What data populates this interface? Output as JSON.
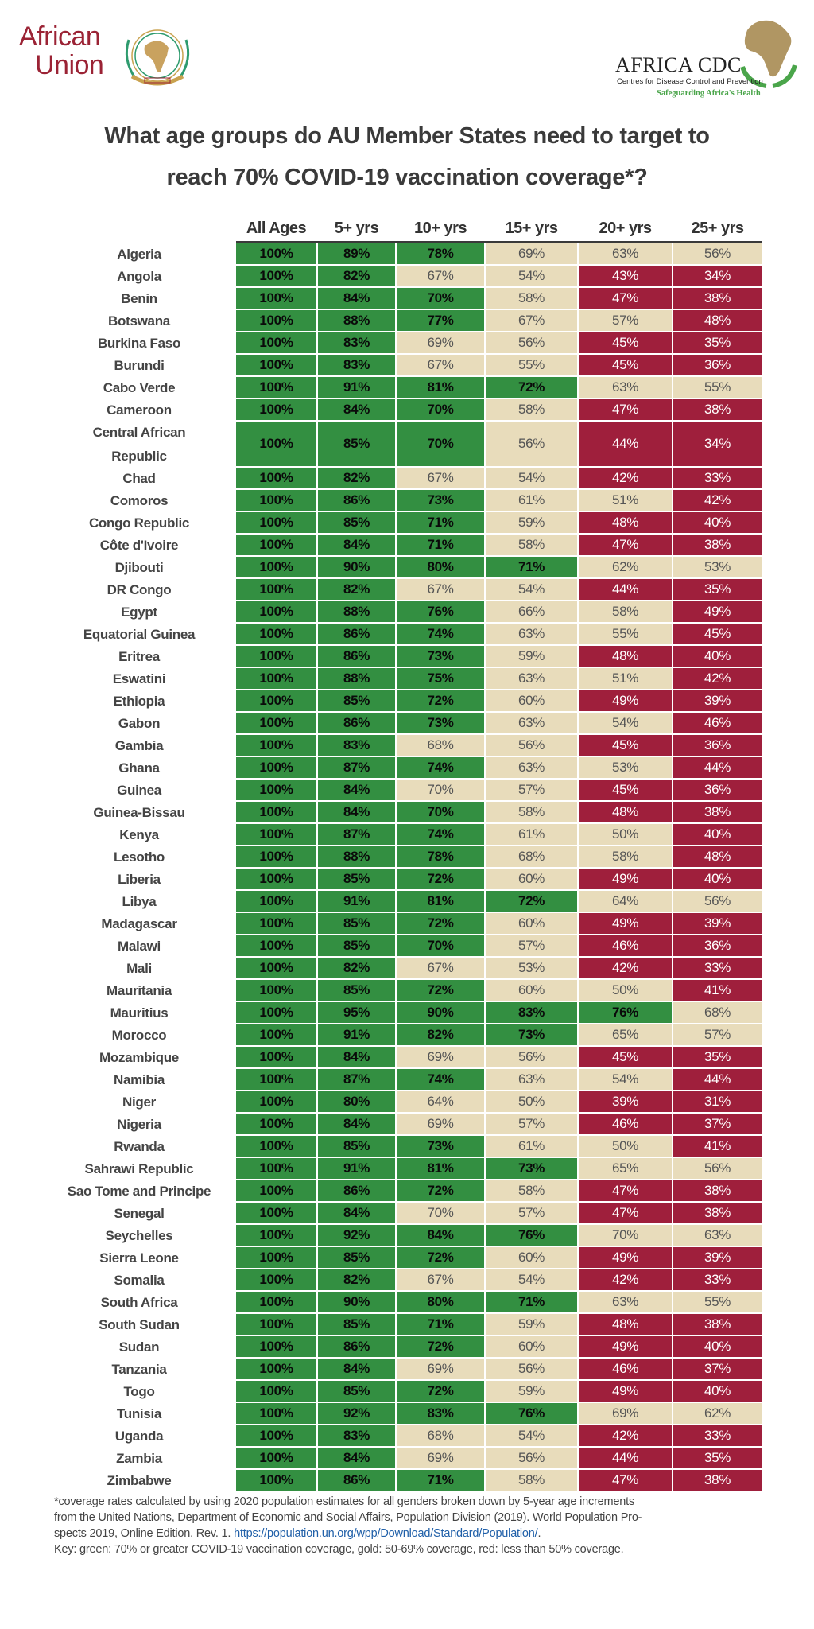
{
  "logos": {
    "african_union": {
      "line1": "African",
      "line2": "Union"
    },
    "africa_cdc": {
      "name": "AFRICA CDC",
      "subtitle": "Centres for Disease Control and Prevention",
      "tagline": "Safeguarding Africa's Health"
    }
  },
  "title": {
    "line1": "What age groups do AU Member States need to target to",
    "line2": "reach 70% COVID-19 vaccination coverage*?"
  },
  "colors": {
    "green": "#338f41",
    "gold": "#e8dcbb",
    "red": "#9f1f3c"
  },
  "chart_data": {
    "type": "table",
    "title": "What age groups do AU Member States need to target to reach 70% COVID-19 vaccination coverage*?",
    "columns": [
      "All Ages",
      "5+ yrs",
      "10+ yrs",
      "15+ yrs",
      "20+ yrs",
      "25+ yrs"
    ],
    "legend": {
      "green": "70% or greater",
      "gold": "50-69%",
      "red": "less than 50%"
    },
    "rows": [
      {
        "country": "Algeria",
        "values": [
          100,
          89,
          78,
          69,
          63,
          56
        ],
        "colors": [
          "green",
          "green",
          "green",
          "gold",
          "gold",
          "gold"
        ]
      },
      {
        "country": "Angola",
        "values": [
          100,
          82,
          67,
          54,
          43,
          34
        ],
        "colors": [
          "green",
          "green",
          "gold",
          "gold",
          "red",
          "red"
        ]
      },
      {
        "country": "Benin",
        "values": [
          100,
          84,
          70,
          58,
          47,
          38
        ],
        "colors": [
          "green",
          "green",
          "green",
          "gold",
          "red",
          "red"
        ]
      },
      {
        "country": "Botswana",
        "values": [
          100,
          88,
          77,
          67,
          57,
          48
        ],
        "colors": [
          "green",
          "green",
          "green",
          "gold",
          "gold",
          "red"
        ]
      },
      {
        "country": "Burkina Faso",
        "values": [
          100,
          83,
          69,
          56,
          45,
          35
        ],
        "colors": [
          "green",
          "green",
          "gold",
          "gold",
          "red",
          "red"
        ]
      },
      {
        "country": "Burundi",
        "values": [
          100,
          83,
          67,
          55,
          45,
          36
        ],
        "colors": [
          "green",
          "green",
          "gold",
          "gold",
          "red",
          "red"
        ]
      },
      {
        "country": "Cabo Verde",
        "values": [
          100,
          91,
          81,
          72,
          63,
          55
        ],
        "colors": [
          "green",
          "green",
          "green",
          "green",
          "gold",
          "gold"
        ]
      },
      {
        "country": "Cameroon",
        "values": [
          100,
          84,
          70,
          58,
          47,
          38
        ],
        "colors": [
          "green",
          "green",
          "green",
          "gold",
          "red",
          "red"
        ]
      },
      {
        "country": "Central African Republic",
        "values": [
          100,
          85,
          70,
          56,
          44,
          34
        ],
        "colors": [
          "green",
          "green",
          "green",
          "gold",
          "red",
          "red"
        ],
        "tall": true
      },
      {
        "country": "Chad",
        "values": [
          100,
          82,
          67,
          54,
          42,
          33
        ],
        "colors": [
          "green",
          "green",
          "gold",
          "gold",
          "red",
          "red"
        ]
      },
      {
        "country": "Comoros",
        "values": [
          100,
          86,
          73,
          61,
          51,
          42
        ],
        "colors": [
          "green",
          "green",
          "green",
          "gold",
          "gold",
          "red"
        ]
      },
      {
        "country": "Congo Republic",
        "values": [
          100,
          85,
          71,
          59,
          48,
          40
        ],
        "colors": [
          "green",
          "green",
          "green",
          "gold",
          "red",
          "red"
        ]
      },
      {
        "country": "Côte d'Ivoire",
        "values": [
          100,
          84,
          71,
          58,
          47,
          38
        ],
        "colors": [
          "green",
          "green",
          "green",
          "gold",
          "red",
          "red"
        ]
      },
      {
        "country": "Djibouti",
        "values": [
          100,
          90,
          80,
          71,
          62,
          53
        ],
        "colors": [
          "green",
          "green",
          "green",
          "green",
          "gold",
          "gold"
        ]
      },
      {
        "country": "DR Congo",
        "values": [
          100,
          82,
          67,
          54,
          44,
          35
        ],
        "colors": [
          "green",
          "green",
          "gold",
          "gold",
          "red",
          "red"
        ]
      },
      {
        "country": "Egypt",
        "values": [
          100,
          88,
          76,
          66,
          58,
          49
        ],
        "colors": [
          "green",
          "green",
          "green",
          "gold",
          "gold",
          "red"
        ]
      },
      {
        "country": "Equatorial Guinea",
        "values": [
          100,
          86,
          74,
          63,
          55,
          45
        ],
        "colors": [
          "green",
          "green",
          "green",
          "gold",
          "gold",
          "red"
        ]
      },
      {
        "country": "Eritrea",
        "values": [
          100,
          86,
          73,
          59,
          48,
          40
        ],
        "colors": [
          "green",
          "green",
          "green",
          "gold",
          "red",
          "red"
        ]
      },
      {
        "country": "Eswatini",
        "values": [
          100,
          88,
          75,
          63,
          51,
          42
        ],
        "colors": [
          "green",
          "green",
          "green",
          "gold",
          "gold",
          "red"
        ]
      },
      {
        "country": "Ethiopia",
        "values": [
          100,
          85,
          72,
          60,
          49,
          39
        ],
        "colors": [
          "green",
          "green",
          "green",
          "gold",
          "red",
          "red"
        ]
      },
      {
        "country": "Gabon",
        "values": [
          100,
          86,
          73,
          63,
          54,
          46
        ],
        "colors": [
          "green",
          "green",
          "green",
          "gold",
          "gold",
          "red"
        ]
      },
      {
        "country": "Gambia",
        "values": [
          100,
          83,
          68,
          56,
          45,
          36
        ],
        "colors": [
          "green",
          "green",
          "gold",
          "gold",
          "red",
          "red"
        ]
      },
      {
        "country": "Ghana",
        "values": [
          100,
          87,
          74,
          63,
          53,
          44
        ],
        "colors": [
          "green",
          "green",
          "green",
          "gold",
          "gold",
          "red"
        ]
      },
      {
        "country": "Guinea",
        "values": [
          100,
          84,
          70,
          57,
          45,
          36
        ],
        "colors": [
          "green",
          "green",
          "gold",
          "gold",
          "red",
          "red"
        ]
      },
      {
        "country": "Guinea-Bissau",
        "values": [
          100,
          84,
          70,
          58,
          48,
          38
        ],
        "colors": [
          "green",
          "green",
          "green",
          "gold",
          "red",
          "red"
        ]
      },
      {
        "country": "Kenya",
        "values": [
          100,
          87,
          74,
          61,
          50,
          40
        ],
        "colors": [
          "green",
          "green",
          "green",
          "gold",
          "gold",
          "red"
        ]
      },
      {
        "country": "Lesotho",
        "values": [
          100,
          88,
          78,
          68,
          58,
          48
        ],
        "colors": [
          "green",
          "green",
          "green",
          "gold",
          "gold",
          "red"
        ]
      },
      {
        "country": "Liberia",
        "values": [
          100,
          85,
          72,
          60,
          49,
          40
        ],
        "colors": [
          "green",
          "green",
          "green",
          "gold",
          "red",
          "red"
        ]
      },
      {
        "country": "Libya",
        "values": [
          100,
          91,
          81,
          72,
          64,
          56
        ],
        "colors": [
          "green",
          "green",
          "green",
          "green",
          "gold",
          "gold"
        ]
      },
      {
        "country": "Madagascar",
        "values": [
          100,
          85,
          72,
          60,
          49,
          39
        ],
        "colors": [
          "green",
          "green",
          "green",
          "gold",
          "red",
          "red"
        ]
      },
      {
        "country": "Malawi",
        "values": [
          100,
          85,
          70,
          57,
          46,
          36
        ],
        "colors": [
          "green",
          "green",
          "green",
          "gold",
          "red",
          "red"
        ]
      },
      {
        "country": "Mali",
        "values": [
          100,
          82,
          67,
          53,
          42,
          33
        ],
        "colors": [
          "green",
          "green",
          "gold",
          "gold",
          "red",
          "red"
        ]
      },
      {
        "country": "Mauritania",
        "values": [
          100,
          85,
          72,
          60,
          50,
          41
        ],
        "colors": [
          "green",
          "green",
          "green",
          "gold",
          "gold",
          "red"
        ]
      },
      {
        "country": "Mauritius",
        "values": [
          100,
          95,
          90,
          83,
          76,
          68
        ],
        "colors": [
          "green",
          "green",
          "green",
          "green",
          "green",
          "gold"
        ]
      },
      {
        "country": "Morocco",
        "values": [
          100,
          91,
          82,
          73,
          65,
          57
        ],
        "colors": [
          "green",
          "green",
          "green",
          "green",
          "gold",
          "gold"
        ]
      },
      {
        "country": "Mozambique",
        "values": [
          100,
          84,
          69,
          56,
          45,
          35
        ],
        "colors": [
          "green",
          "green",
          "gold",
          "gold",
          "red",
          "red"
        ]
      },
      {
        "country": "Namibia",
        "values": [
          100,
          87,
          74,
          63,
          54,
          44
        ],
        "colors": [
          "green",
          "green",
          "green",
          "gold",
          "gold",
          "red"
        ]
      },
      {
        "country": "Niger",
        "values": [
          100,
          80,
          64,
          50,
          39,
          31
        ],
        "colors": [
          "green",
          "green",
          "gold",
          "gold",
          "red",
          "red"
        ]
      },
      {
        "country": "Nigeria",
        "values": [
          100,
          84,
          69,
          57,
          46,
          37
        ],
        "colors": [
          "green",
          "green",
          "gold",
          "gold",
          "red",
          "red"
        ]
      },
      {
        "country": "Rwanda",
        "values": [
          100,
          85,
          73,
          61,
          50,
          41
        ],
        "colors": [
          "green",
          "green",
          "green",
          "gold",
          "gold",
          "red"
        ]
      },
      {
        "country": "Sahrawi Republic",
        "values": [
          100,
          91,
          81,
          73,
          65,
          56
        ],
        "colors": [
          "green",
          "green",
          "green",
          "green",
          "gold",
          "gold"
        ]
      },
      {
        "country": "Sao Tome and Principe",
        "values": [
          100,
          86,
          72,
          58,
          47,
          38
        ],
        "colors": [
          "green",
          "green",
          "green",
          "gold",
          "red",
          "red"
        ]
      },
      {
        "country": "Senegal",
        "values": [
          100,
          84,
          70,
          57,
          47,
          38
        ],
        "colors": [
          "green",
          "green",
          "gold",
          "gold",
          "red",
          "red"
        ]
      },
      {
        "country": "Seychelles",
        "values": [
          100,
          92,
          84,
          76,
          70,
          63
        ],
        "colors": [
          "green",
          "green",
          "green",
          "green",
          "gold",
          "gold"
        ]
      },
      {
        "country": "Sierra Leone",
        "values": [
          100,
          85,
          72,
          60,
          49,
          39
        ],
        "colors": [
          "green",
          "green",
          "green",
          "gold",
          "red",
          "red"
        ]
      },
      {
        "country": "Somalia",
        "values": [
          100,
          82,
          67,
          54,
          42,
          33
        ],
        "colors": [
          "green",
          "green",
          "gold",
          "gold",
          "red",
          "red"
        ]
      },
      {
        "country": "South Africa",
        "values": [
          100,
          90,
          80,
          71,
          63,
          55
        ],
        "colors": [
          "green",
          "green",
          "green",
          "green",
          "gold",
          "gold"
        ]
      },
      {
        "country": "South Sudan",
        "values": [
          100,
          85,
          71,
          59,
          48,
          38
        ],
        "colors": [
          "green",
          "green",
          "green",
          "gold",
          "red",
          "red"
        ]
      },
      {
        "country": "Sudan",
        "values": [
          100,
          86,
          72,
          60,
          49,
          40
        ],
        "colors": [
          "green",
          "green",
          "green",
          "gold",
          "red",
          "red"
        ]
      },
      {
        "country": "Tanzania",
        "values": [
          100,
          84,
          69,
          56,
          46,
          37
        ],
        "colors": [
          "green",
          "green",
          "gold",
          "gold",
          "red",
          "red"
        ]
      },
      {
        "country": "Togo",
        "values": [
          100,
          85,
          72,
          59,
          49,
          40
        ],
        "colors": [
          "green",
          "green",
          "green",
          "gold",
          "red",
          "red"
        ]
      },
      {
        "country": "Tunisia",
        "values": [
          100,
          92,
          83,
          76,
          69,
          62
        ],
        "colors": [
          "green",
          "green",
          "green",
          "green",
          "gold",
          "gold"
        ]
      },
      {
        "country": "Uganda",
        "values": [
          100,
          83,
          68,
          54,
          42,
          33
        ],
        "colors": [
          "green",
          "green",
          "gold",
          "gold",
          "red",
          "red"
        ]
      },
      {
        "country": "Zambia",
        "values": [
          100,
          84,
          69,
          56,
          44,
          35
        ],
        "colors": [
          "green",
          "green",
          "gold",
          "gold",
          "red",
          "red"
        ]
      },
      {
        "country": "Zimbabwe",
        "values": [
          100,
          86,
          71,
          58,
          47,
          38
        ],
        "colors": [
          "green",
          "green",
          "green",
          "gold",
          "red",
          "red"
        ]
      }
    ]
  },
  "footnote": {
    "line1": "*coverage rates calculated by using 2020 population estimates for all genders broken down by 5-year age increments",
    "line2": "from the United Nations, Department of Economic and Social Affairs, Population Division (2019). World Population Pro-",
    "line3_prefix": "spects 2019, Online Edition. Rev. 1. ",
    "link": "https://population.un.org/wpp/Download/Standard/Population/",
    "line3_suffix": ".",
    "key": "Key: green: 70% or greater COVID-19 vaccination coverage, gold: 50-69% coverage, red: less than 50% coverage."
  }
}
